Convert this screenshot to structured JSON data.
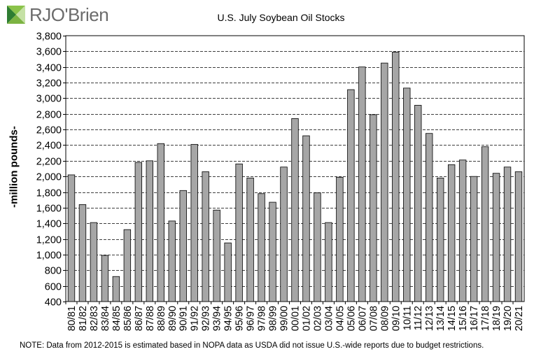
{
  "brand": {
    "logo_text": "RJO'Brien",
    "logo_colors": [
      "#8bc34a",
      "#2e7d32",
      "#7cb342",
      "#c5e1a5"
    ]
  },
  "chart_data": {
    "type": "bar",
    "title": "U.S. July Soybean Oil Stocks",
    "xlabel": "",
    "ylabel": "-million pounds-",
    "ylim": [
      400,
      3800
    ],
    "yticks": [
      400,
      600,
      800,
      1000,
      1200,
      1400,
      1600,
      1800,
      2000,
      2200,
      2400,
      2600,
      2800,
      3000,
      3200,
      3400,
      3600,
      3800
    ],
    "grid": true,
    "bar_color": "#a6a6a6",
    "categories": [
      "80/81",
      "81/82",
      "82/83",
      "83/84",
      "84/85",
      "85/86",
      "86/87",
      "87/88",
      "88/89",
      "89/90",
      "90/91",
      "91/92",
      "92/93",
      "93/94",
      "94/95",
      "95/96",
      "96/97",
      "97/98",
      "98/99",
      "99/00",
      "00/01",
      "01/02",
      "02/03",
      "03/04",
      "04/05",
      "05/06",
      "06/07",
      "07/08",
      "08/09",
      "09/10",
      "10/11",
      "11/12",
      "12/13",
      "13/14",
      "14/15",
      "15/16",
      "16/17",
      "17/18",
      "18/19",
      "19/20",
      "20/21"
    ],
    "values": [
      2020,
      1640,
      1410,
      990,
      720,
      1320,
      2180,
      2200,
      2420,
      1430,
      1820,
      2410,
      2060,
      1570,
      1150,
      2160,
      1980,
      1780,
      1670,
      2120,
      2740,
      2520,
      1790,
      1410,
      1990,
      3110,
      3400,
      2790,
      3450,
      3590,
      3130,
      2910,
      2550,
      1980,
      2150,
      2210,
      2000,
      2380,
      2040,
      2120,
      2060
    ]
  },
  "note": "NOTE: Data from 2012-2015 is estimated based in NOPA data as USDA did not issue U.S.-wide reports due to budget restrictions."
}
